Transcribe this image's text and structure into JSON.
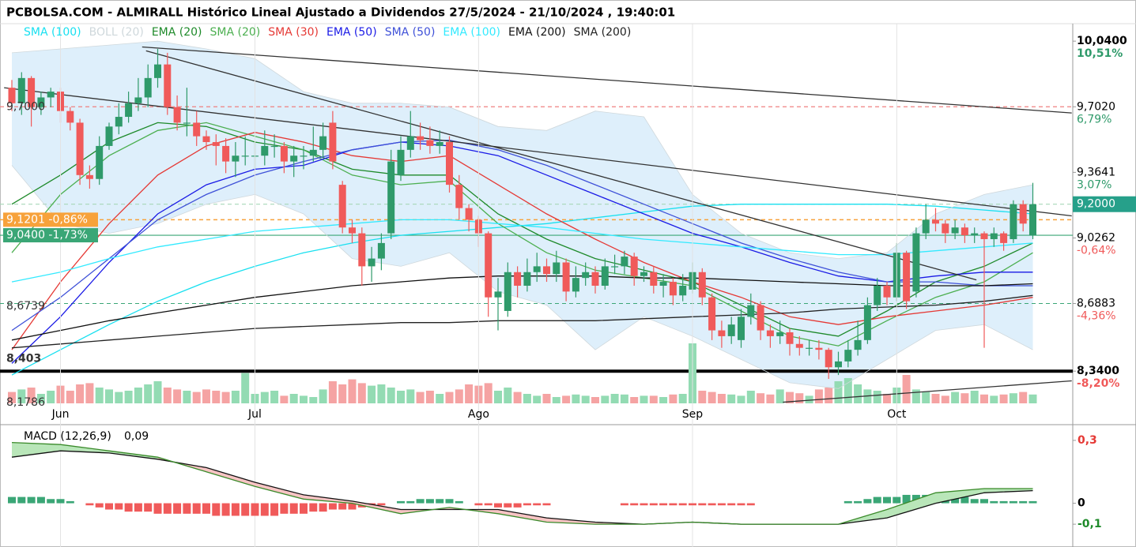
{
  "chart_data": {
    "type": "candlestick",
    "title": "PCBOLSA.COM - ALMIRALL Histórico Lineal Ajustado a Dividendos 27/5/2024 - 21/10/2024 , 19:40:01",
    "categories": [
      null,
      null,
      null,
      null,
      null,
      "Jun",
      null,
      null,
      null,
      null,
      null,
      null,
      null,
      null,
      null,
      null,
      null,
      null,
      null,
      null,
      null,
      null,
      null,
      null,
      null,
      "Jul",
      null,
      null,
      null,
      null,
      null,
      null,
      null,
      null,
      null,
      null,
      null,
      null,
      null,
      null,
      null,
      null,
      null,
      null,
      null,
      null,
      null,
      null,
      "Ago",
      null,
      null,
      null,
      null,
      null,
      null,
      null,
      null,
      null,
      null,
      null,
      null,
      null,
      null,
      null,
      null,
      null,
      null,
      null,
      null,
      null,
      "Sep",
      null,
      null,
      null,
      null,
      null,
      null,
      null,
      null,
      null,
      null,
      null,
      null,
      null,
      null,
      null,
      null,
      null,
      null,
      null,
      null,
      "Oct",
      null,
      null,
      null,
      null,
      null,
      null,
      null,
      null,
      null,
      null,
      null,
      null,
      null,
      null
    ],
    "open": [
      9.8,
      9.72,
      9.85,
      9.7,
      9.75,
      9.78,
      9.68,
      9.62,
      9.35,
      9.33,
      9.5,
      9.6,
      9.65,
      9.72,
      9.75,
      9.85,
      9.92,
      9.7,
      9.62,
      9.62,
      9.55,
      9.52,
      9.5,
      9.42,
      9.45,
      9.45,
      9.45,
      9.5,
      9.5,
      9.42,
      9.45,
      9.45,
      9.48,
      9.62,
      9.3,
      9.08,
      9.05,
      8.88,
      8.92,
      9.05,
      9.35,
      9.48,
      9.55,
      9.53,
      9.5,
      9.52,
      9.3,
      9.18,
      9.12,
      9.05,
      8.72,
      8.65,
      8.85,
      8.78,
      8.85,
      8.88,
      8.84,
      8.9,
      8.75,
      8.82,
      8.85,
      8.78,
      8.88,
      8.88,
      8.93,
      8.83,
      8.85,
      8.78,
      8.8,
      8.73,
      8.76,
      8.85,
      8.72,
      8.55,
      8.52,
      8.5,
      8.62,
      8.68,
      8.55,
      8.52,
      8.54,
      8.48,
      8.46,
      8.46,
      8.45,
      8.36,
      8.39,
      8.45,
      8.5,
      8.68,
      8.78,
      8.72,
      8.95,
      8.75,
      9.05,
      9.12,
      9.1,
      9.05,
      9.08,
      9.04,
      9.05,
      9.02,
      9.05,
      9.02,
      9.2,
      9.04
    ],
    "high": [
      9.84,
      9.88,
      9.86,
      9.78,
      9.8,
      9.8,
      9.7,
      9.64,
      9.4,
      9.55,
      9.62,
      9.72,
      9.78,
      9.85,
      9.92,
      10.0,
      9.98,
      9.76,
      9.8,
      9.68,
      9.58,
      9.56,
      9.54,
      9.52,
      9.55,
      9.52,
      9.58,
      9.56,
      9.52,
      9.5,
      9.5,
      9.6,
      9.62,
      9.68,
      9.32,
      9.12,
      9.08,
      8.98,
      9.05,
      9.48,
      9.55,
      9.68,
      9.62,
      9.6,
      9.58,
      9.55,
      9.35,
      9.2,
      9.14,
      9.06,
      8.82,
      8.9,
      8.88,
      8.92,
      8.95,
      8.92,
      8.96,
      8.92,
      8.88,
      8.9,
      8.88,
      8.92,
      8.94,
      8.96,
      8.95,
      8.88,
      8.88,
      8.84,
      8.82,
      8.84,
      8.9,
      8.87,
      8.74,
      8.6,
      8.62,
      8.66,
      8.74,
      8.7,
      8.58,
      8.6,
      8.56,
      8.52,
      8.5,
      8.5,
      8.46,
      8.44,
      8.5,
      8.6,
      8.72,
      8.82,
      8.8,
      9.0,
      8.96,
      9.08,
      9.2,
      9.18,
      9.12,
      9.12,
      9.1,
      9.08,
      9.06,
      9.08,
      9.06,
      9.22,
      9.22,
      9.31
    ],
    "low": [
      9.68,
      9.66,
      9.6,
      9.66,
      9.7,
      9.62,
      9.58,
      9.3,
      9.28,
      9.3,
      9.48,
      9.56,
      9.62,
      9.68,
      9.7,
      9.8,
      9.66,
      9.58,
      9.55,
      9.5,
      9.48,
      9.4,
      9.36,
      9.34,
      9.4,
      9.38,
      9.4,
      9.44,
      9.36,
      9.34,
      9.38,
      9.42,
      9.44,
      9.38,
      9.05,
      9.0,
      8.78,
      8.8,
      8.86,
      9.02,
      9.32,
      9.44,
      9.48,
      9.46,
      9.46,
      9.26,
      9.12,
      9.06,
      8.98,
      8.62,
      8.55,
      8.62,
      8.72,
      8.75,
      8.8,
      8.8,
      8.8,
      8.7,
      8.72,
      8.78,
      8.74,
      8.76,
      8.84,
      8.84,
      8.78,
      8.8,
      8.74,
      8.72,
      8.68,
      8.7,
      8.74,
      8.68,
      8.5,
      8.46,
      8.48,
      8.46,
      8.58,
      8.5,
      8.46,
      8.48,
      8.42,
      8.42,
      8.42,
      8.4,
      8.3,
      8.32,
      8.36,
      8.42,
      8.48,
      8.65,
      8.68,
      8.7,
      8.66,
      8.72,
      9.02,
      9.06,
      9.0,
      9.02,
      9.0,
      9.0,
      8.46,
      8.98,
      8.96,
      9.0,
      9.06,
      9.02
    ],
    "close": [
      9.72,
      9.85,
      9.7,
      9.75,
      9.78,
      9.68,
      9.62,
      9.35,
      9.33,
      9.5,
      9.6,
      9.65,
      9.72,
      9.75,
      9.85,
      9.92,
      9.7,
      9.62,
      9.62,
      9.55,
      9.52,
      9.5,
      9.42,
      9.45,
      9.45,
      9.45,
      9.5,
      9.5,
      9.42,
      9.45,
      9.45,
      9.48,
      9.55,
      9.42,
      9.08,
      9.05,
      8.88,
      8.92,
      9.0,
      9.42,
      9.48,
      9.55,
      9.53,
      9.5,
      9.52,
      9.3,
      9.18,
      9.12,
      9.05,
      8.72,
      8.75,
      8.85,
      8.78,
      8.85,
      8.88,
      8.84,
      8.9,
      8.75,
      8.82,
      8.85,
      8.78,
      8.88,
      8.88,
      8.93,
      8.83,
      8.85,
      8.78,
      8.8,
      8.73,
      8.78,
      8.85,
      8.72,
      8.55,
      8.52,
      8.58,
      8.62,
      8.68,
      8.55,
      8.52,
      8.54,
      8.48,
      8.46,
      8.46,
      8.45,
      8.36,
      8.39,
      8.45,
      8.5,
      8.68,
      8.78,
      8.72,
      8.95,
      8.7,
      9.05,
      9.12,
      9.1,
      9.05,
      9.08,
      9.04,
      9.05,
      9.02,
      9.05,
      9.0,
      9.2,
      9.1,
      9.2
    ],
    "up_color": "#2f9a6a",
    "down_color": "#f05a5a",
    "volume": [
      18,
      22,
      25,
      15,
      20,
      28,
      20,
      30,
      32,
      25,
      22,
      18,
      20,
      25,
      30,
      35,
      25,
      22,
      20,
      18,
      22,
      20,
      18,
      20,
      48,
      15,
      18,
      20,
      12,
      15,
      12,
      10,
      22,
      35,
      30,
      38,
      32,
      28,
      30,
      25,
      20,
      22,
      18,
      20,
      15,
      18,
      22,
      30,
      28,
      32,
      20,
      25,
      18,
      15,
      12,
      15,
      10,
      12,
      14,
      12,
      10,
      12,
      15,
      14,
      10,
      12,
      12,
      10,
      14,
      15,
      95,
      20,
      18,
      15,
      14,
      12,
      20,
      16,
      14,
      22,
      18,
      16,
      12,
      22,
      25,
      35,
      40,
      30,
      22,
      20,
      15,
      25,
      45,
      22,
      18,
      15,
      12,
      18,
      16,
      20,
      14,
      12,
      14,
      16,
      18,
      14
    ],
    "volume_ylim": [
      0,
      150
    ],
    "volume_up_color": "#93dbb3",
    "volume_down_color": "#f5a3a3",
    "ylim": [
      8.17,
      10.13
    ],
    "yticks": [
      {
        "value": 10.04,
        "label": "10,0400"
      },
      {
        "value": 9.702,
        "label": "9,7020"
      },
      {
        "value": 9.3641,
        "label": "9,3641"
      },
      {
        "value": 9.0262,
        "label": "9,0262"
      },
      {
        "value": 8.6883,
        "label": "8,6883"
      },
      {
        "value": 8.34,
        "label": "8,3400"
      }
    ],
    "ytick_pct": [
      "10,51%",
      "6,79%",
      "3,07%",
      "-0,64%",
      "-4,36%",
      "-8,20%"
    ],
    "ytick_pct_colors": [
      "#2f9a6a",
      "#2f9a6a",
      "#2f9a6a",
      "#f05a5a",
      "#f05a5a",
      "#f05a5a"
    ],
    "last_price": {
      "value": 9.2,
      "label": "9,2000",
      "color": "#26a08a"
    },
    "left_labels": [
      {
        "value": 9.7,
        "label": "9,7000"
      },
      {
        "value": 9.1201,
        "label": "9,1201  -0,86%",
        "bg": "#f7a23b"
      },
      {
        "value": 9.04,
        "label": "9,0400  -1,73%",
        "bg": "#3aa676"
      },
      {
        "value": 8.6739,
        "label": "8,6739"
      },
      {
        "value": 8.403,
        "label": "8,403",
        "bold": true
      },
      {
        "value": 8.1786,
        "label": "8,1786"
      }
    ],
    "hlines": [
      {
        "value": 9.702,
        "color": "#f08080",
        "dash": true,
        "width": 1.2
      },
      {
        "value": 9.2,
        "color": "#a8d8b8",
        "dash": true,
        "width": 1.2
      },
      {
        "value": 9.1201,
        "color": "#f7a23b",
        "dash": true,
        "width": 1.5
      },
      {
        "value": 9.04,
        "color": "#3aa676",
        "dash": false,
        "width": 1.2
      },
      {
        "value": 8.6883,
        "color": "#3aa676",
        "dash": true,
        "width": 1
      },
      {
        "value": 8.34,
        "color": "#000000",
        "dash": false,
        "width": 4
      }
    ],
    "trendlines": [
      {
        "x": [
          13.4,
          109
        ],
        "y": [
          10.01,
          9.67
        ]
      },
      {
        "x": [
          -0.8,
          109
        ],
        "y": [
          9.8,
          9.14
        ]
      },
      {
        "x": [
          13.8,
          99.2
        ],
        "y": [
          9.99,
          8.81
        ]
      },
      {
        "x": [
          79.3,
          109
        ],
        "y": [
          8.18,
          8.29
        ]
      }
    ],
    "indicators": {
      "x": [
        0,
        5,
        10,
        15,
        20,
        25,
        30,
        35,
        40,
        45,
        50,
        55,
        60,
        65,
        70,
        75,
        80,
        85,
        90,
        95,
        100,
        105
      ],
      "series": [
        {
          "name": "SMA (100)",
          "color": "#19e0f0",
          "values": [
            8.32,
            8.45,
            8.58,
            8.7,
            8.8,
            8.88,
            8.95,
            9.0,
            9.04,
            9.06,
            9.08,
            9.1,
            9.13,
            9.16,
            9.19,
            9.2,
            9.2,
            9.2,
            9.2,
            9.19,
            9.17,
            9.15
          ]
        },
        {
          "name": "BOLL (20)",
          "color": "#cfd8dc",
          "fill": "#d8ecfa",
          "values": [
            9.98,
            10.0,
            10.02,
            10.04,
            10.0,
            9.95,
            9.78,
            9.72,
            9.72,
            9.7,
            9.6,
            9.58,
            9.68,
            9.65,
            9.25,
            9.05,
            8.95,
            8.92,
            8.95,
            9.15,
            9.25,
            9.3
          ],
          "lower": [
            9.4,
            9.1,
            9.05,
            9.1,
            9.2,
            9.25,
            9.15,
            8.92,
            8.88,
            8.95,
            8.75,
            8.68,
            8.45,
            8.62,
            8.52,
            8.4,
            8.28,
            8.25,
            8.4,
            8.55,
            8.58,
            8.45
          ]
        },
        {
          "name": "EMA (20)",
          "color": "#1e8a2a",
          "values": [
            9.2,
            9.35,
            9.52,
            9.62,
            9.6,
            9.52,
            9.48,
            9.38,
            9.35,
            9.35,
            9.15,
            9.02,
            8.92,
            8.86,
            8.8,
            8.68,
            8.56,
            8.52,
            8.65,
            8.8,
            8.88,
            9.0
          ]
        },
        {
          "name": "SMA (20)",
          "color": "#4caf50",
          "values": [
            8.95,
            9.25,
            9.45,
            9.58,
            9.62,
            9.55,
            9.48,
            9.35,
            9.3,
            9.32,
            9.1,
            8.95,
            8.86,
            8.82,
            8.78,
            8.65,
            8.52,
            8.47,
            8.6,
            8.72,
            8.8,
            8.95
          ]
        },
        {
          "name": "SMA (30)",
          "color": "#e53935",
          "values": [
            8.45,
            8.8,
            9.1,
            9.35,
            9.5,
            9.57,
            9.52,
            9.45,
            9.42,
            9.45,
            9.3,
            9.15,
            9.02,
            8.9,
            8.8,
            8.72,
            8.62,
            8.58,
            8.62,
            8.65,
            8.68,
            8.72
          ]
        },
        {
          "name": "EMA (50)",
          "color": "#1a1ae6",
          "values": [
            8.38,
            8.62,
            8.9,
            9.15,
            9.3,
            9.38,
            9.4,
            9.48,
            9.52,
            9.5,
            9.45,
            9.35,
            9.25,
            9.15,
            9.05,
            8.98,
            8.9,
            8.83,
            8.8,
            8.83,
            8.85,
            8.85
          ]
        },
        {
          "name": "SMA (50)",
          "color": "#3f51d8",
          "values": [
            8.55,
            8.72,
            8.92,
            9.12,
            9.25,
            9.35,
            9.42,
            9.48,
            9.52,
            9.53,
            9.48,
            9.4,
            9.3,
            9.2,
            9.1,
            9.0,
            8.92,
            8.85,
            8.8,
            8.8,
            8.78,
            8.78
          ]
        },
        {
          "name": "EMA (100)",
          "color": "#33eaff",
          "values": [
            8.8,
            8.85,
            8.92,
            8.98,
            9.02,
            9.06,
            9.08,
            9.1,
            9.12,
            9.12,
            9.1,
            9.08,
            9.05,
            9.02,
            9.0,
            8.98,
            8.96,
            8.94,
            8.94,
            8.96,
            8.98,
            9.0
          ]
        },
        {
          "name": "EMA (200)",
          "color": "#111111",
          "values": [
            8.5,
            8.55,
            8.6,
            8.64,
            8.68,
            8.72,
            8.75,
            8.78,
            8.8,
            8.82,
            8.83,
            8.83,
            8.83,
            8.82,
            8.82,
            8.81,
            8.8,
            8.79,
            8.78,
            8.78,
            8.78,
            8.79
          ]
        },
        {
          "name": "SMA (200)",
          "color": "#222222",
          "values": [
            8.46,
            8.48,
            8.5,
            8.52,
            8.54,
            8.56,
            8.57,
            8.58,
            8.59,
            8.59,
            8.6,
            8.6,
            8.6,
            8.61,
            8.62,
            8.63,
            8.64,
            8.66,
            8.67,
            8.68,
            8.7,
            8.73
          ]
        }
      ]
    },
    "macd": {
      "title": "MACD (12,26,9)",
      "current": {
        "value": 0.09,
        "label": "0,09"
      },
      "ylim": [
        -0.19,
        0.36
      ],
      "yticks": [
        {
          "value": 0.3,
          "label": "0,3"
        },
        0,
        {
          "value": -0.1,
          "label": "-0,1"
        }
      ],
      "ytick_colors": [
        "#e53935",
        "#000000",
        "#1e8a2a"
      ],
      "x": [
        0,
        5,
        10,
        15,
        20,
        25,
        30,
        35,
        40,
        45,
        50,
        55,
        60,
        65,
        70,
        75,
        80,
        85,
        90,
        95,
        100,
        105
      ],
      "macd": [
        0.29,
        0.28,
        0.25,
        0.22,
        0.15,
        0.08,
        0.02,
        0.0,
        -0.05,
        -0.02,
        -0.05,
        -0.09,
        -0.1,
        -0.1,
        -0.09,
        -0.1,
        -0.1,
        -0.1,
        -0.03,
        0.05,
        0.07,
        0.07
      ],
      "signal": [
        0.22,
        0.25,
        0.24,
        0.21,
        0.17,
        0.1,
        0.04,
        0.01,
        -0.03,
        -0.03,
        -0.03,
        -0.07,
        -0.09,
        -0.1,
        -0.09,
        -0.1,
        -0.1,
        -0.1,
        -0.07,
        0.0,
        0.05,
        0.06
      ],
      "macd_color": "#3a8a2a",
      "signal_color": "#111111",
      "up_fill": "#b9e6b9",
      "down_fill": "#f7c4c4",
      "histogram": [
        0.03,
        0.03,
        0.03,
        0.03,
        0.02,
        0.02,
        0.01,
        0.0,
        -0.01,
        -0.02,
        -0.03,
        -0.03,
        -0.04,
        -0.04,
        -0.04,
        -0.05,
        -0.05,
        -0.05,
        -0.05,
        -0.05,
        -0.05,
        -0.06,
        -0.06,
        -0.06,
        -0.06,
        -0.06,
        -0.06,
        -0.06,
        -0.05,
        -0.05,
        -0.05,
        -0.04,
        -0.04,
        -0.03,
        -0.03,
        -0.03,
        -0.02,
        -0.01,
        -0.01,
        0.0,
        0.01,
        0.01,
        0.02,
        0.02,
        0.02,
        0.02,
        0.01,
        0.0,
        -0.01,
        -0.01,
        -0.02,
        -0.02,
        -0.02,
        -0.01,
        -0.01,
        -0.01,
        0.0,
        0.0,
        0.0,
        0.0,
        0.0,
        0.0,
        0.0,
        -0.01,
        -0.01,
        -0.01,
        -0.01,
        -0.01,
        -0.01,
        -0.01,
        -0.01,
        -0.01,
        -0.01,
        -0.01,
        -0.01,
        -0.01,
        -0.01,
        0.0,
        0.0,
        0.0,
        0.0,
        0.0,
        0.0,
        0.0,
        0.0,
        0.0,
        0.01,
        0.01,
        0.02,
        0.03,
        0.03,
        0.03,
        0.04,
        0.04,
        0.04,
        0.04,
        0.04,
        0.03,
        0.03,
        0.02,
        0.02,
        0.01,
        0.01,
        0.01,
        0.01,
        0.01
      ],
      "hist_up_color": "#3aa676",
      "hist_down_color": "#f05a5a"
    }
  }
}
